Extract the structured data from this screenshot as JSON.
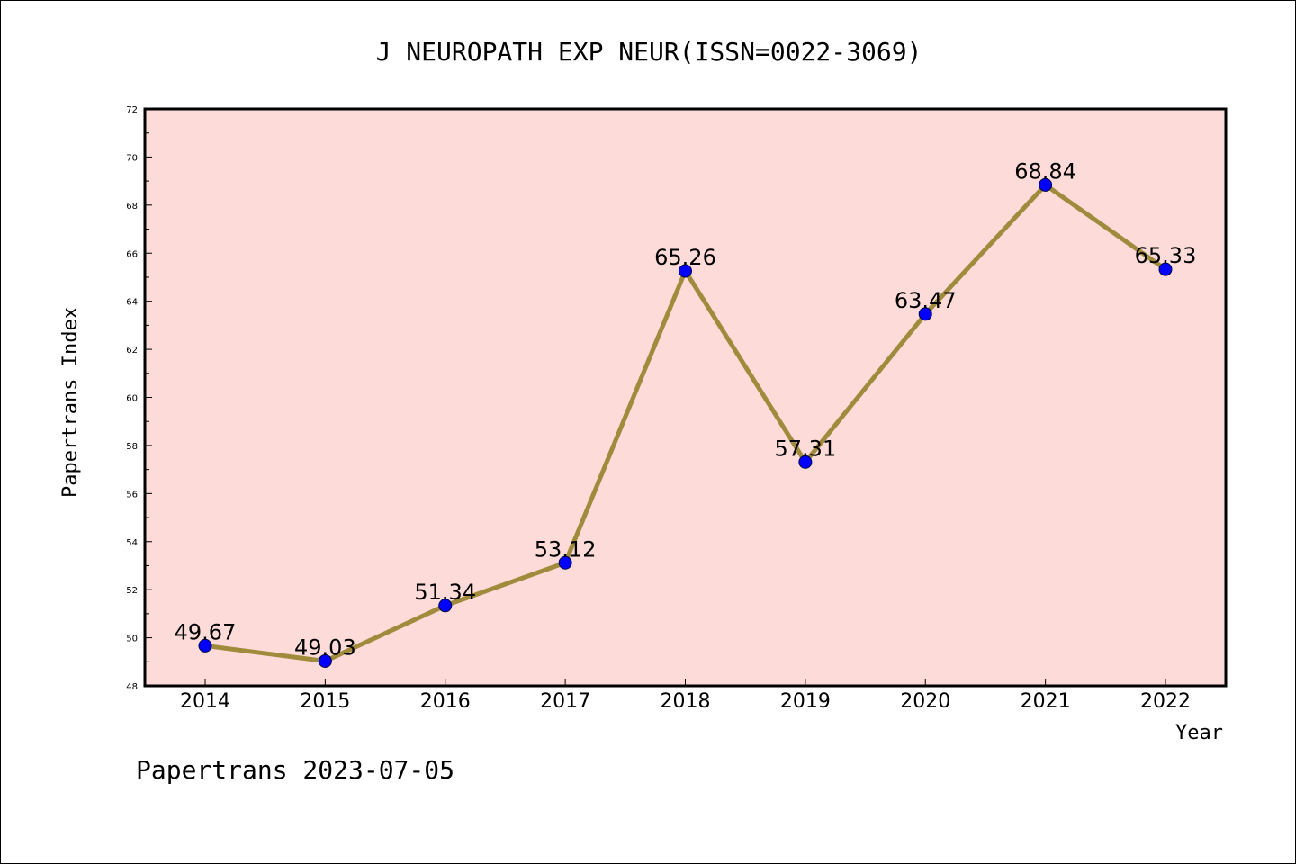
{
  "chart_data": {
    "type": "line",
    "title": "J NEUROPATH EXP NEUR(ISSN=0022-3069)",
    "xlabel": "Year",
    "ylabel": "Papertrans Index",
    "categories": [
      "2014",
      "2015",
      "2016",
      "2017",
      "2018",
      "2019",
      "2020",
      "2021",
      "2022"
    ],
    "values": [
      49.67,
      49.03,
      51.34,
      53.12,
      65.26,
      57.31,
      63.47,
      68.84,
      65.33
    ],
    "data_labels": [
      "49.67",
      "49.03",
      "51.34",
      "53.12",
      "65.26",
      "57.31",
      "63.47",
      "68.84",
      "65.33"
    ],
    "ylim": [
      48,
      72
    ],
    "yticks": [
      48,
      50,
      52,
      54,
      56,
      58,
      60,
      62,
      64,
      66,
      68,
      70,
      72
    ],
    "grid": false,
    "legend": "none",
    "colors": {
      "plot_background": "#fddbd8",
      "line": "#a08a3c",
      "marker": "#0000ff"
    }
  },
  "footer": "Papertrans 2023-07-05"
}
